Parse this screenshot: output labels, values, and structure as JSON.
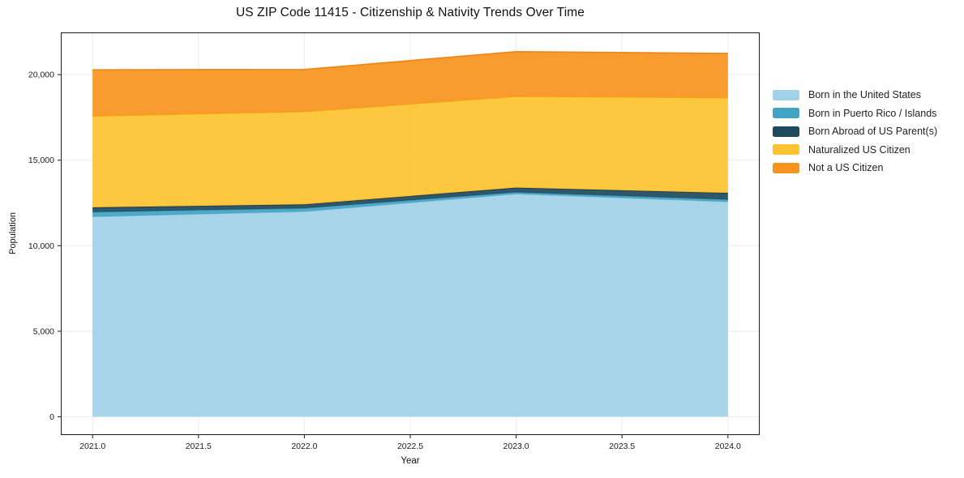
{
  "chart_data": {
    "type": "area",
    "stacked": true,
    "title": "US ZIP Code 11415 - Citizenship & Nativity Trends Over Time",
    "xlabel": "Year",
    "ylabel": "Population",
    "x": [
      2021,
      2022,
      2023,
      2024
    ],
    "series": [
      {
        "name": "Born in the United States",
        "color": "#a2d2e8",
        "edge_color": "#85c1dd",
        "values": [
          11700,
          12000,
          13030,
          12570
        ]
      },
      {
        "name": "Born in Puerto Rico / Islands",
        "color": "#41a4c4",
        "edge_color": "#3a93b0",
        "values": [
          270,
          190,
          100,
          130
        ]
      },
      {
        "name": "Born Abroad of US Parent(s)",
        "color": "#1f4a5e",
        "edge_color": "#16394a",
        "values": [
          270,
          225,
          265,
          385
        ]
      },
      {
        "name": "Naturalized US Citizen",
        "color": "#fdc330",
        "edge_color": "#f5b112",
        "values": [
          5340,
          5420,
          5330,
          5565
        ]
      },
      {
        "name": "Not a US Citizen",
        "color": "#f79420",
        "edge_color": "#ee8414",
        "values": [
          2705,
          2465,
          2620,
          2590
        ]
      }
    ],
    "totals": [
      20285,
      20300,
      21345,
      21240
    ],
    "xticks": {
      "values": [
        2021,
        2021.5,
        2022,
        2022.5,
        2023,
        2023.5,
        2024
      ],
      "labels": [
        "2021.0",
        "2021.5",
        "2022.0",
        "2022.5",
        "2023.0",
        "2023.5",
        "2024.0"
      ]
    },
    "yticks": {
      "values": [
        0,
        5000,
        10000,
        15000,
        20000
      ],
      "labels": [
        "0",
        "5,000",
        "10,000",
        "15,000",
        "20,000"
      ]
    },
    "x_range": [
      2020.85,
      2024.15
    ],
    "y_range": [
      -1070,
      22470
    ],
    "grid": true,
    "legend_position": "right",
    "styles": {
      "grid_color": "#ebebeb",
      "spine_color": "#1a1a1a",
      "tick_label_color": "#1a1a1a",
      "fill_opacity": 0.93
    }
  }
}
